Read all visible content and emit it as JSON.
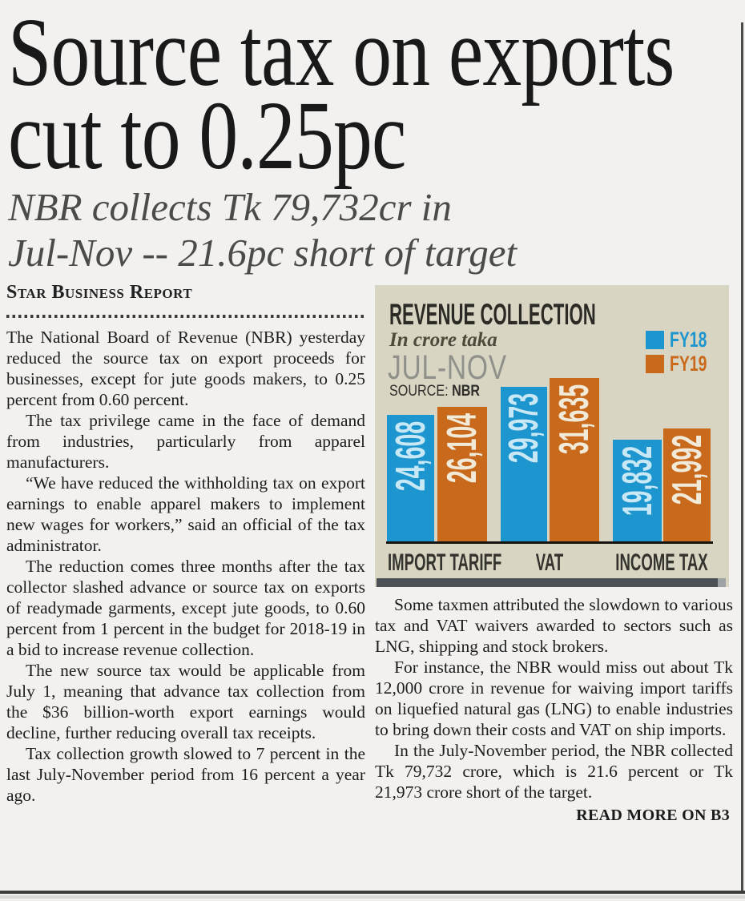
{
  "article": {
    "headline_lines": [
      "Source tax on exports",
      "cut to 0.25pc"
    ],
    "subhead_lines": [
      "NBR collects Tk 79,732cr in",
      "Jul-Nov -- 21.6pc short of target"
    ],
    "byline": "Star Business Report",
    "left_paragraphs": [
      "The National Board of Revenue (NBR) yesterday reduced the source tax on export proceeds for businesses, except for jute goods makers, to 0.25 percent from 0.60 percent.",
      "The tax privilege came in the face of demand from industries, particularly from apparel manufacturers.",
      "“We have reduced the withholding tax on export earnings to enable apparel makers to implement new wages for workers,” said an official of the tax administrator.",
      "The reduction comes three months after the tax collector slashed advance or source tax on exports of readymade garments, except jute goods, to 0.60 percent from 1 percent in the budget for 2018-19 in a bid to increase revenue collection.",
      "The new source tax would be applicable from July 1, meaning that advance tax collection from the $36 billion-worth export earnings would decline, further reducing overall tax receipts.",
      "Tax collection growth slowed to 7 percent in the last July-November period from 16 percent a year ago."
    ],
    "right_paragraphs": [
      "Some taxmen attributed the slowdown to various tax and VAT waivers awarded to sectors such as LNG, shipping and stock brokers.",
      "For instance, the NBR would miss out about Tk 12,000 crore in revenue for waiving import tariffs on liquefied natural gas (LNG) to enable industries to bring down their costs and VAT on ship imports.",
      "In the July-November period, the NBR collected Tk 79,732 crore, which is 21.6 percent or Tk 21,973 crore short of the target."
    ],
    "read_more": "READ MORE ON B3"
  },
  "chart_data": {
    "type": "bar",
    "title": "REVENUE COLLECTION",
    "unit_label": "In crore taka",
    "period_label": "JUL-NOV",
    "source_prefix": "SOURCE:",
    "source_value": "NBR",
    "categories": [
      "IMPORT TARIFF",
      "VAT",
      "INCOME TAX"
    ],
    "series": [
      {
        "name": "FY18",
        "color": "#1d96cf",
        "label_color": "#c9e8f5",
        "values": [
          24608,
          29973,
          19832
        ]
      },
      {
        "name": "FY19",
        "color": "#c8691b",
        "label_color": "#f2ead8",
        "values": [
          26104,
          31635,
          21992
        ]
      }
    ],
    "ylim": [
      0,
      31635
    ],
    "grid": false,
    "legend_position": "top-right",
    "background": "#d9d5c3"
  }
}
